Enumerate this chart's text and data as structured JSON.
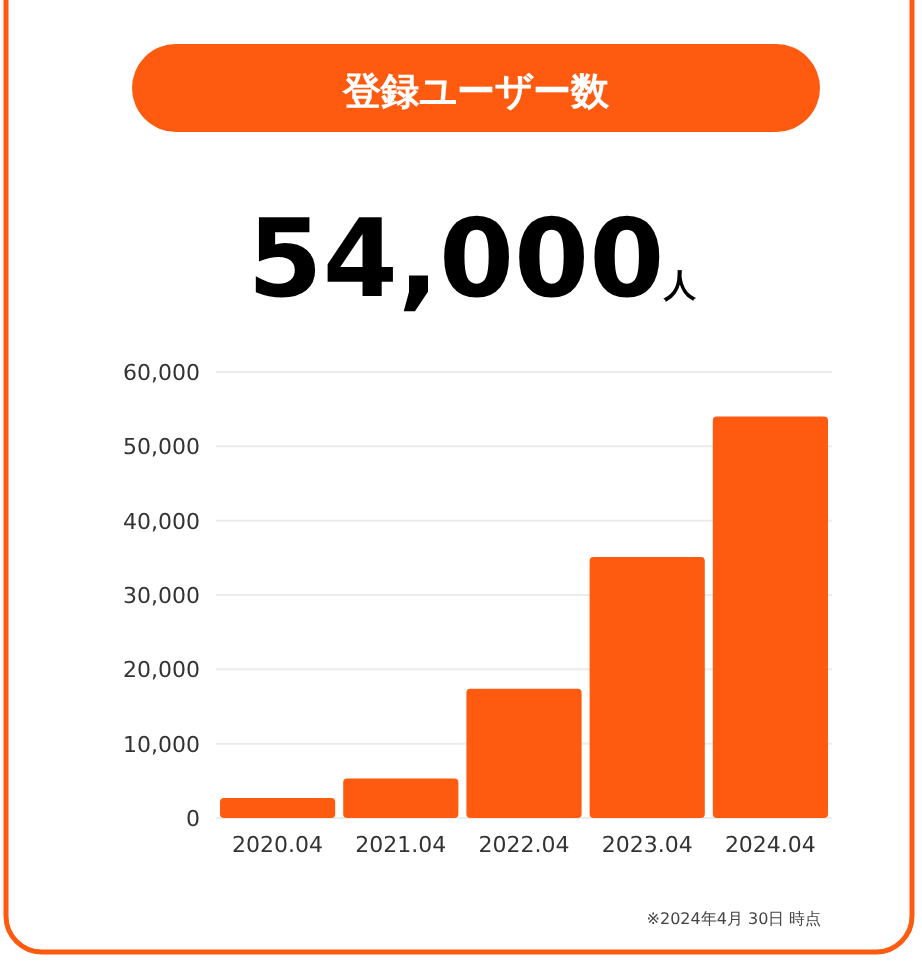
{
  "chart_data": {
    "type": "bar",
    "title": "登録ユーザー数",
    "subtitle": "54,000人",
    "categories": [
      "2020.04",
      "2021.04",
      "2022.04",
      "2023.04",
      "2024.04"
    ],
    "values": [
      2700,
      5300,
      17400,
      35100,
      54000
    ],
    "color": "#fe5a10",
    "ylim": [
      0,
      60000
    ],
    "yticks": [
      {
        "value": 0,
        "label": "0"
      },
      {
        "value": 10000,
        "label": "10,000"
      },
      {
        "value": 20000,
        "label": "20,000"
      },
      {
        "value": 30000,
        "label": "30,000"
      },
      {
        "value": 40000,
        "label": "40,000"
      },
      {
        "value": 50000,
        "label": "50,000"
      },
      {
        "value": 60000,
        "label": "60,000"
      }
    ],
    "grid": "y",
    "annotations": [
      "※2024年4月 30日 時点"
    ]
  }
}
